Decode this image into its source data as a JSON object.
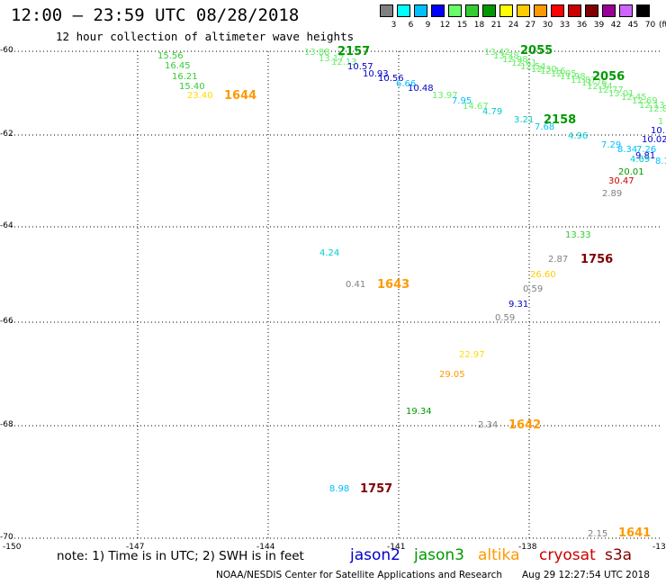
{
  "header": {
    "title": "12:00 – 23:59 UTC 08/28/2018",
    "subtitle": "12 hour collection of altimeter wave heights"
  },
  "color_scale": {
    "unit_label": "(ft)",
    "bins": [
      {
        "label": "3",
        "color": "#808080"
      },
      {
        "label": "6",
        "color": "#00ffff"
      },
      {
        "label": "9",
        "color": "#00bfff"
      },
      {
        "label": "12",
        "color": "#0000ff"
      },
      {
        "label": "15",
        "color": "#66ff66"
      },
      {
        "label": "18",
        "color": "#33cc33"
      },
      {
        "label": "21",
        "color": "#009900"
      },
      {
        "label": "24",
        "color": "#ffff00"
      },
      {
        "label": "27",
        "color": "#ffcc00"
      },
      {
        "label": "30",
        "color": "#ff9900"
      },
      {
        "label": "33",
        "color": "#ff0000"
      },
      {
        "label": "36",
        "color": "#cc0000"
      },
      {
        "label": "39",
        "color": "#800000"
      },
      {
        "label": "42",
        "color": "#990099"
      },
      {
        "label": "45",
        "color": "#cc66ff"
      },
      {
        "label": "70",
        "color": "#000000"
      }
    ]
  },
  "axes": {
    "latitudes": [
      "-60",
      "-62",
      "-64",
      "-66",
      "-68",
      "-70"
    ],
    "longitudes": [
      "-150",
      "-147",
      "-144",
      "-141",
      "-138",
      "-13"
    ]
  },
  "observations": [
    {
      "v": "13.88",
      "c": "#66ee66"
    },
    {
      "v": "13.17",
      "c": "#66ee66"
    },
    {
      "v": "12.13",
      "c": "#66ee66"
    },
    {
      "v": "10.57",
      "c": "#0000cc"
    },
    {
      "v": "10.93",
      "c": "#0000cc"
    },
    {
      "v": "10.56",
      "c": "#0000cc"
    },
    {
      "v": "6.66",
      "c": "#00bfff"
    },
    {
      "v": "10.48",
      "c": "#0000cc"
    },
    {
      "v": "13.97",
      "c": "#66ee66"
    },
    {
      "v": "7.95",
      "c": "#00bfff"
    },
    {
      "v": "14.67",
      "c": "#66ee66"
    },
    {
      "v": "4.79",
      "c": "#00cccc"
    },
    {
      "v": "15.56",
      "c": "#33cc33"
    },
    {
      "v": "16.45",
      "c": "#33cc33"
    },
    {
      "v": "16.21",
      "c": "#33cc33"
    },
    {
      "v": "15.40",
      "c": "#33cc33"
    },
    {
      "v": "23.40",
      "c": "#ffdd00"
    },
    {
      "v": "3.21",
      "c": "#00cccc"
    },
    {
      "v": "7.68",
      "c": "#00bfff"
    },
    {
      "v": "4.96",
      "c": "#00cccc"
    },
    {
      "v": "7.29",
      "c": "#00bfff"
    },
    {
      "v": "8.34",
      "c": "#00bfff"
    },
    {
      "v": "7.26",
      "c": "#00bfff"
    },
    {
      "v": "9.81",
      "c": "#0000cc"
    },
    {
      "v": "4.69",
      "c": "#00cccc"
    },
    {
      "v": "8.1",
      "c": "#00bfff"
    },
    {
      "v": "10.",
      "c": "#0000cc"
    },
    {
      "v": "10.02",
      "c": "#0000cc"
    },
    {
      "v": "1",
      "c": "#66ee66"
    },
    {
      "v": "20.01",
      "c": "#009900"
    },
    {
      "v": "30.47",
      "c": "#cc0000"
    },
    {
      "v": "2.89",
      "c": "#808080"
    },
    {
      "v": "13.33",
      "c": "#33cc33"
    },
    {
      "v": "4.24",
      "c": "#00cccc"
    },
    {
      "v": "0.41",
      "c": "#808080"
    },
    {
      "v": "2.87",
      "c": "#808080"
    },
    {
      "v": "26.60",
      "c": "#ffcc00"
    },
    {
      "v": "0.59",
      "c": "#808080"
    },
    {
      "v": "9.31",
      "c": "#0000cc"
    },
    {
      "v": "0.59",
      "c": "#808080"
    },
    {
      "v": "22.97",
      "c": "#ffdd00"
    },
    {
      "v": "29.05",
      "c": "#ff9900"
    },
    {
      "v": "19.34",
      "c": "#009900"
    },
    {
      "v": "2.34",
      "c": "#808080"
    },
    {
      "v": "8.98",
      "c": "#00bfff"
    },
    {
      "v": "2.15",
      "c": "#808080"
    },
    {
      "v": "13.42",
      "c": "#66ee66"
    },
    {
      "v": "13.38",
      "c": "#66ee66"
    },
    {
      "v": "12.98",
      "c": "#66ee66"
    },
    {
      "v": "12.61",
      "c": "#66ee66"
    },
    {
      "v": "12.54",
      "c": "#66ee66"
    },
    {
      "v": "12.30",
      "c": "#66ee66"
    },
    {
      "v": "12.16",
      "c": "#66ee66"
    },
    {
      "v": "12.05",
      "c": "#66ee66"
    },
    {
      "v": "11.98",
      "c": "#66ee66"
    },
    {
      "v": "11.87",
      "c": "#66ee66"
    },
    {
      "v": "11.76",
      "c": "#66ee66"
    },
    {
      "v": "12.34",
      "c": "#66ee66"
    },
    {
      "v": "12.77",
      "c": "#66ee66"
    },
    {
      "v": "13.01",
      "c": "#66ee66"
    },
    {
      "v": "12.45",
      "c": "#66ee66"
    },
    {
      "v": "12.69",
      "c": "#66ee66"
    },
    {
      "v": "12.13",
      "c": "#66ee66"
    },
    {
      "v": "12.82",
      "c": "#66ee66"
    }
  ],
  "time_labels": [
    {
      "v": "2157",
      "c": "#009900"
    },
    {
      "v": "2055",
      "c": "#009900"
    },
    {
      "v": "2056",
      "c": "#009900"
    },
    {
      "v": "1644",
      "c": "#ff9900"
    },
    {
      "v": "2158",
      "c": "#009900"
    },
    {
      "v": "1756",
      "c": "#800000"
    },
    {
      "v": "1643",
      "c": "#ff9900"
    },
    {
      "v": "1642",
      "c": "#ff9900"
    },
    {
      "v": "1757",
      "c": "#800000"
    },
    {
      "v": "1641",
      "c": "#ff9900"
    }
  ],
  "note": "note: 1) Time is in UTC; 2) SWH is in feet",
  "satellites": [
    {
      "name": "jason2",
      "color": "#0000cc"
    },
    {
      "name": "jason3",
      "color": "#009900"
    },
    {
      "name": "altika",
      "color": "#ff9900"
    },
    {
      "name": "cryosat",
      "color": "#cc0000"
    },
    {
      "name": "s3a",
      "color": "#800000"
    }
  ],
  "footer": {
    "credit": "NOAA/NESDIS Center for Satellite Applications and Research",
    "timestamp": "Aug 29 12:27:54 UTC 2018"
  }
}
